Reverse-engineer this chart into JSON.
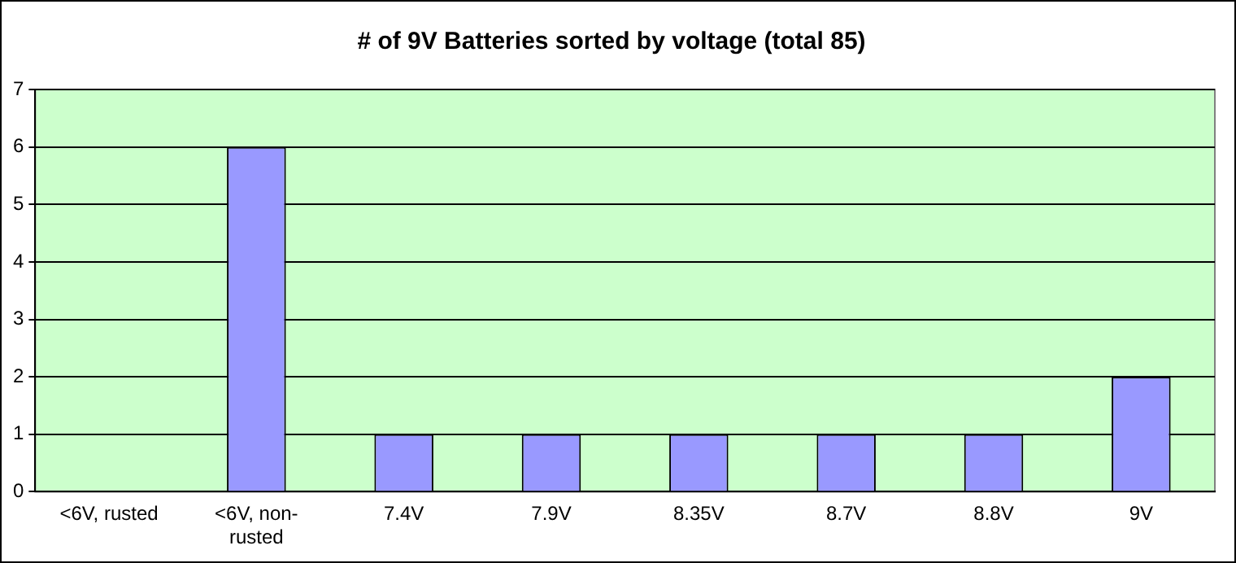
{
  "chart_data": {
    "type": "bar",
    "title": "# of 9V Batteries sorted by voltage (total 85)",
    "categories": [
      "<6V, rusted",
      "<6V, non-rusted",
      "7.4V",
      "7.9V",
      "8.35V",
      "8.7V",
      "8.8V",
      "9V"
    ],
    "values": [
      0,
      6,
      1,
      1,
      1,
      1,
      1,
      2
    ],
    "color": "#9999ff",
    "ylim": [
      0,
      7
    ],
    "yticks": [
      0,
      1,
      2,
      3,
      4,
      5,
      6,
      7
    ],
    "grid": "y",
    "legend": false
  }
}
